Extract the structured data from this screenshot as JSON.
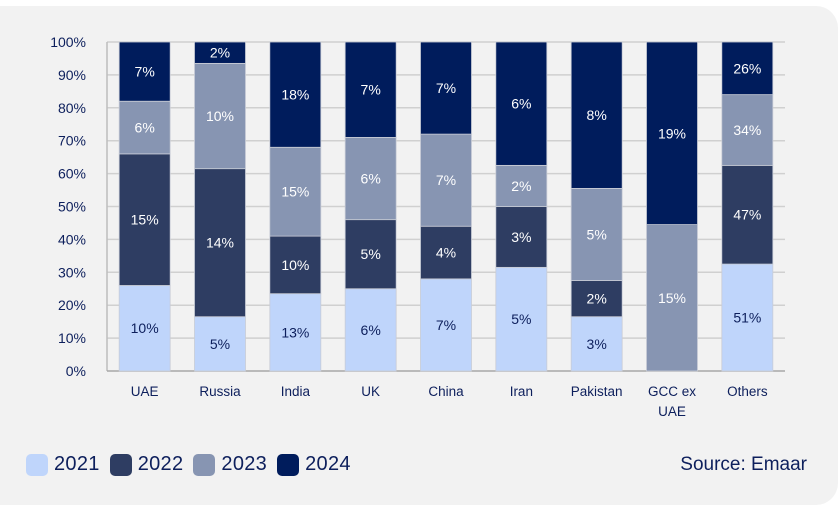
{
  "chart_data": {
    "type": "bar",
    "stacked": true,
    "percent_stacked": true,
    "title": "",
    "xlabel": "",
    "ylabel": "",
    "ylim": [
      0,
      100
    ],
    "yticks": [
      "0%",
      "10%",
      "20%",
      "30%",
      "40%",
      "50%",
      "60%",
      "70%",
      "80%",
      "90%",
      "100%"
    ],
    "grid": true,
    "legend_position": "bottom-left",
    "categories": [
      "UAE",
      "Russia",
      "India",
      "UK",
      "China",
      "Iran",
      "Pakistan",
      "GCC ex UAE",
      "Others"
    ],
    "series": [
      {
        "name": "2021",
        "color": "#bfd5fb",
        "label_color": "#0d1f5c",
        "share_of_bar_pct": [
          26,
          16.5,
          23.5,
          25,
          28,
          31.5,
          16.5,
          0,
          32.5
        ],
        "data_labels": [
          "10%",
          "5%",
          "13%",
          "6%",
          "7%",
          "5%",
          "3%",
          "",
          "51%"
        ]
      },
      {
        "name": "2022",
        "color": "#2e3d62",
        "label_color": "#ffffff",
        "share_of_bar_pct": [
          40,
          45,
          17.5,
          21,
          16,
          18.5,
          11,
          0,
          30
        ],
        "data_labels": [
          "15%",
          "14%",
          "10%",
          "5%",
          "4%",
          "3%",
          "2%",
          "",
          "47%"
        ]
      },
      {
        "name": "2023",
        "color": "#8795b2",
        "label_color": "#ffffff",
        "share_of_bar_pct": [
          16,
          32,
          27,
          25,
          28,
          12.5,
          28,
          44.5,
          21.5
        ],
        "data_labels": [
          "6%",
          "10%",
          "15%",
          "6%",
          "7%",
          "2%",
          "5%",
          "15%",
          "34%"
        ]
      },
      {
        "name": "2024",
        "color": "#001c5c",
        "label_color": "#ffffff",
        "share_of_bar_pct": [
          18,
          6.5,
          32,
          29,
          28,
          37.5,
          44.5,
          55.5,
          16
        ],
        "data_labels": [
          "7%",
          "2%",
          "18%",
          "7%",
          "7%",
          "6%",
          "8%",
          "19%",
          "26%"
        ]
      }
    ],
    "source": "Source: Emaar"
  }
}
